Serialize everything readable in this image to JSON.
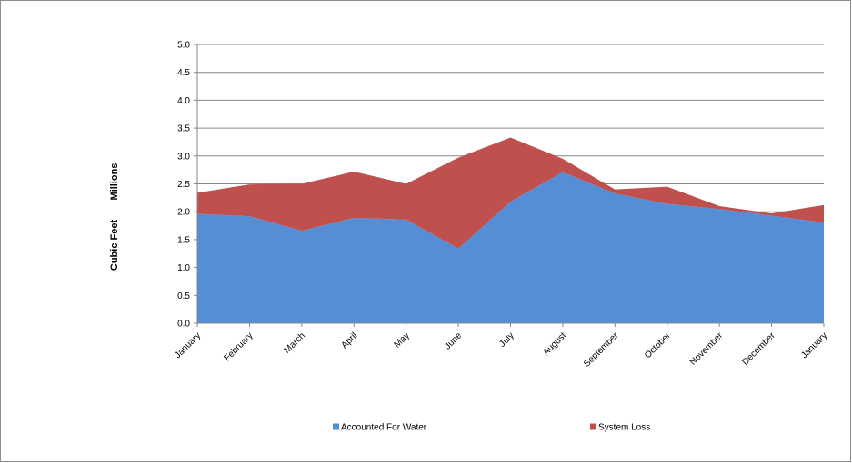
{
  "chart_data": {
    "type": "area",
    "stacked": true,
    "title": "",
    "xlabel": "",
    "ylabel": "Cubic Feet",
    "ylabel_unit": "Millions",
    "categories": [
      "January",
      "February",
      "March",
      "April",
      "May",
      "June",
      "July",
      "August",
      "September",
      "October",
      "November",
      "December",
      "January"
    ],
    "ylim": [
      0,
      5
    ],
    "yticks": [
      "0.0",
      "0.5",
      "1.0",
      "1.5",
      "2.0",
      "2.5",
      "3.0",
      "3.5",
      "4.0",
      "4.5",
      "5.0"
    ],
    "grid": true,
    "legend_position": "bottom",
    "series": [
      {
        "name": "Accounted For Water",
        "color": "#558ed5",
        "values": [
          1.96,
          1.92,
          1.66,
          1.89,
          1.86,
          1.34,
          2.18,
          2.71,
          2.33,
          2.14,
          2.05,
          1.93,
          1.81
        ]
      },
      {
        "name": "System Loss",
        "color": "#c0504d",
        "values": [
          0.38,
          0.57,
          0.84,
          0.83,
          0.64,
          1.63,
          1.15,
          0.24,
          0.07,
          0.31,
          0.05,
          0.04,
          0.31
        ]
      }
    ]
  }
}
